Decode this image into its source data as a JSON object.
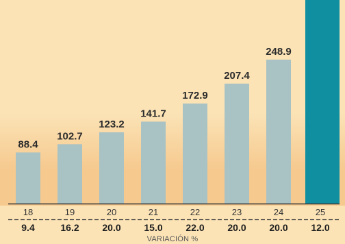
{
  "colors": {
    "background_top": "#fbe3b6",
    "background_bottom": "#f6c98e",
    "bar": "#a9c2c3",
    "bar_highlight": "#0f8fa0",
    "baseline": "#3a3a3a"
  },
  "chart_data": {
    "type": "bar",
    "categories": [
      "18",
      "19",
      "20",
      "21",
      "22",
      "23",
      "24",
      "25"
    ],
    "values": [
      88.4,
      102.7,
      123.2,
      141.7,
      172.9,
      207.4,
      248.9,
      null
    ],
    "value_labels": [
      "88.4",
      "102.7",
      "123.2",
      "141.7",
      "172.9",
      "207.4",
      "248.9",
      ""
    ],
    "highlight_index": 7,
    "highlight_extends_beyond_frame": true,
    "variation_labels": [
      "9.4",
      "16.2",
      "20.0",
      "15.0",
      "22.0",
      "20.0",
      "20.0",
      "12.0"
    ],
    "variation_caption": "VARIACIÓN %",
    "grid": false,
    "legend": "none"
  }
}
